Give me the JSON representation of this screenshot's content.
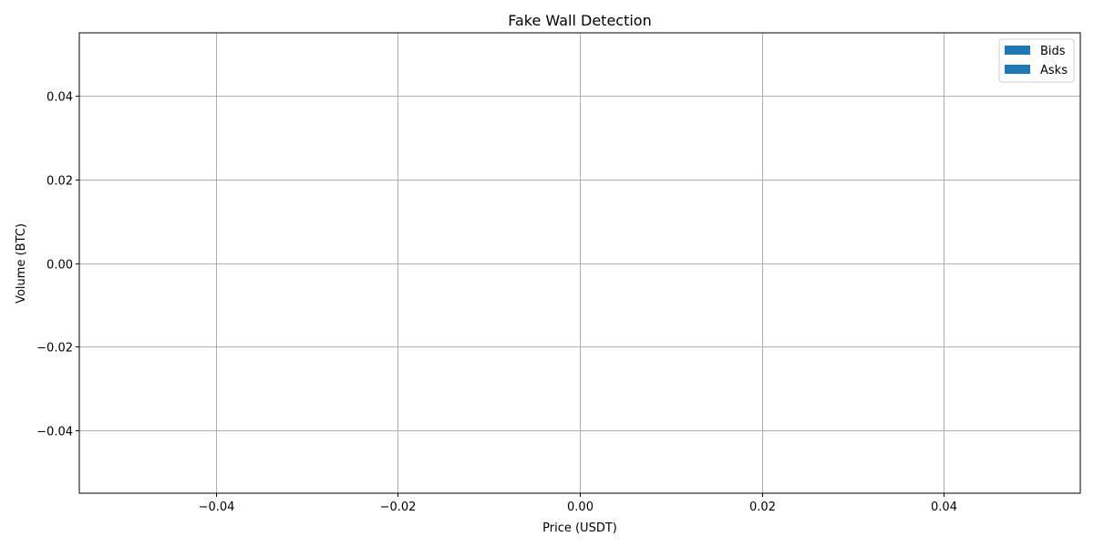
{
  "chart_data": {
    "type": "bar",
    "title": "Fake Wall Detection",
    "xlabel": "Price (USDT)",
    "ylabel": "Volume (BTC)",
    "xlim": [
      -0.055,
      0.055
    ],
    "ylim": [
      -0.055,
      0.055
    ],
    "x_ticks": [
      -0.04,
      -0.02,
      0.0,
      0.02,
      0.04
    ],
    "x_tick_labels": [
      "−0.04",
      "−0.02",
      "0.00",
      "0.02",
      "0.04"
    ],
    "y_ticks": [
      -0.04,
      -0.02,
      0.0,
      0.02,
      0.04
    ],
    "y_tick_labels": [
      "−0.04",
      "−0.02",
      "0.00",
      "0.02",
      "0.04"
    ],
    "grid": true,
    "legend_position": "top-right",
    "series": [
      {
        "name": "Bids",
        "color": "#1f77b4",
        "x": [],
        "values": []
      },
      {
        "name": "Asks",
        "color": "#1f77b4",
        "x": [],
        "values": []
      }
    ]
  }
}
